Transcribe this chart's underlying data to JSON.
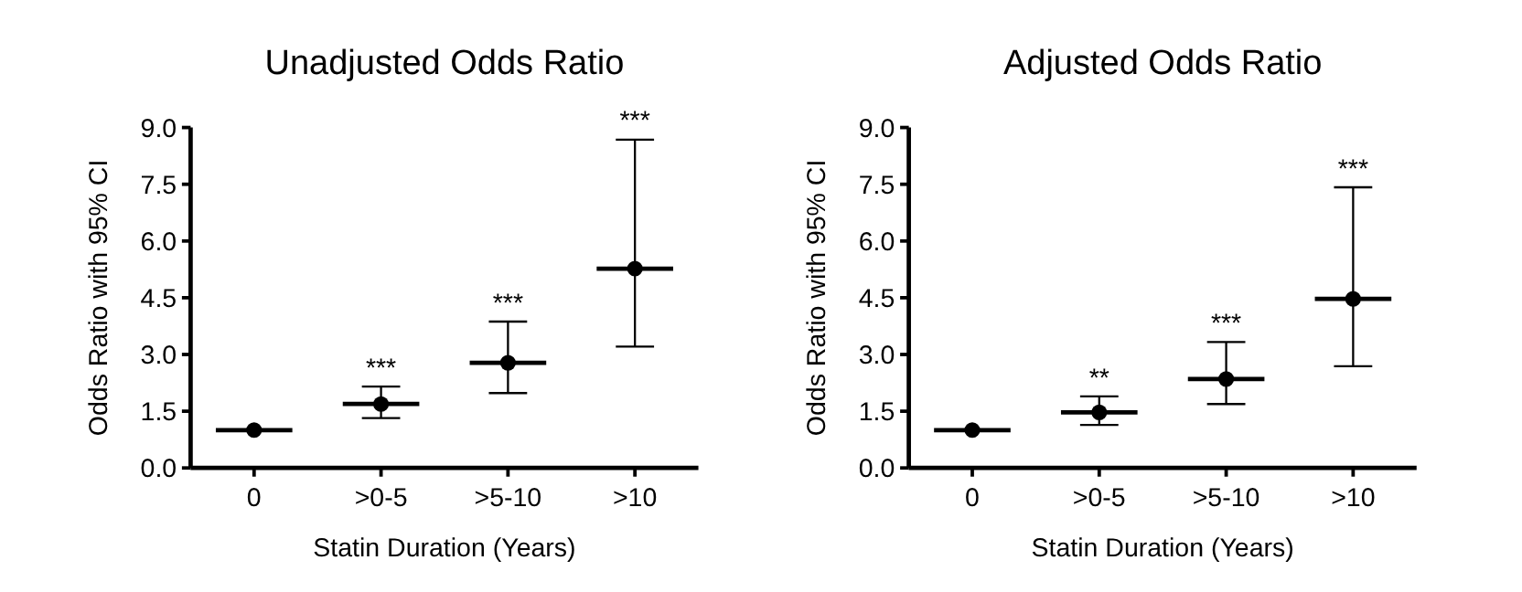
{
  "chart_data": [
    {
      "type": "scatter",
      "title": "Unadjusted Odds Ratio",
      "xlabel": "Statin Duration (Years)",
      "ylabel": "Odds Ratio with 95% CI",
      "categories": [
        "0",
        ">0-5",
        ">5-10",
        ">10"
      ],
      "values": [
        1.0,
        1.69,
        2.78,
        5.27
      ],
      "errors": [
        null,
        [
          1.32,
          2.15
        ],
        [
          1.98,
          3.87
        ],
        [
          3.21,
          8.68
        ]
      ],
      "color": "#000000",
      "marker": "circle",
      "ylim": [
        0,
        9
      ],
      "yticks": [
        {
          "value": 0,
          "label": "0.0"
        },
        {
          "value": 1.5,
          "label": "1.5"
        },
        {
          "value": 3,
          "label": "3.0"
        },
        {
          "value": 4.5,
          "label": "4.5"
        },
        {
          "value": 6,
          "label": "6.0"
        },
        {
          "value": 7.5,
          "label": "7.5"
        },
        {
          "value": 9,
          "label": "9.0"
        }
      ],
      "annotations": [
        {
          "text": "***",
          "x": ">0-5",
          "y": 2.15
        },
        {
          "text": "***",
          "x": ">5-10",
          "y": 3.87
        },
        {
          "text": "***",
          "x": ">10",
          "y": 8.68
        }
      ]
    },
    {
      "type": "scatter",
      "title": "Adjusted Odds Ratio",
      "xlabel": "Statin Duration (Years)",
      "ylabel": "Odds Ratio with 95% CI",
      "categories": [
        "0",
        ">0-5",
        ">5-10",
        ">10"
      ],
      "values": [
        1.0,
        1.47,
        2.35,
        4.47
      ],
      "errors": [
        null,
        [
          1.14,
          1.89
        ],
        [
          1.69,
          3.33
        ],
        [
          2.69,
          7.42
        ]
      ],
      "color": "#000000",
      "marker": "circle",
      "ylim": [
        0,
        9
      ],
      "yticks": [
        {
          "value": 0,
          "label": "0.0"
        },
        {
          "value": 1.5,
          "label": "1.5"
        },
        {
          "value": 3,
          "label": "3.0"
        },
        {
          "value": 4.5,
          "label": "4.5"
        },
        {
          "value": 6,
          "label": "6.0"
        },
        {
          "value": 7.5,
          "label": "7.5"
        },
        {
          "value": 9,
          "label": "9.0"
        }
      ],
      "annotations": [
        {
          "text": "**",
          "x": ">0-5",
          "y": 1.89
        },
        {
          "text": "***",
          "x": ">5-10",
          "y": 3.33
        },
        {
          "text": "***",
          "x": ">10",
          "y": 7.42
        }
      ]
    }
  ]
}
